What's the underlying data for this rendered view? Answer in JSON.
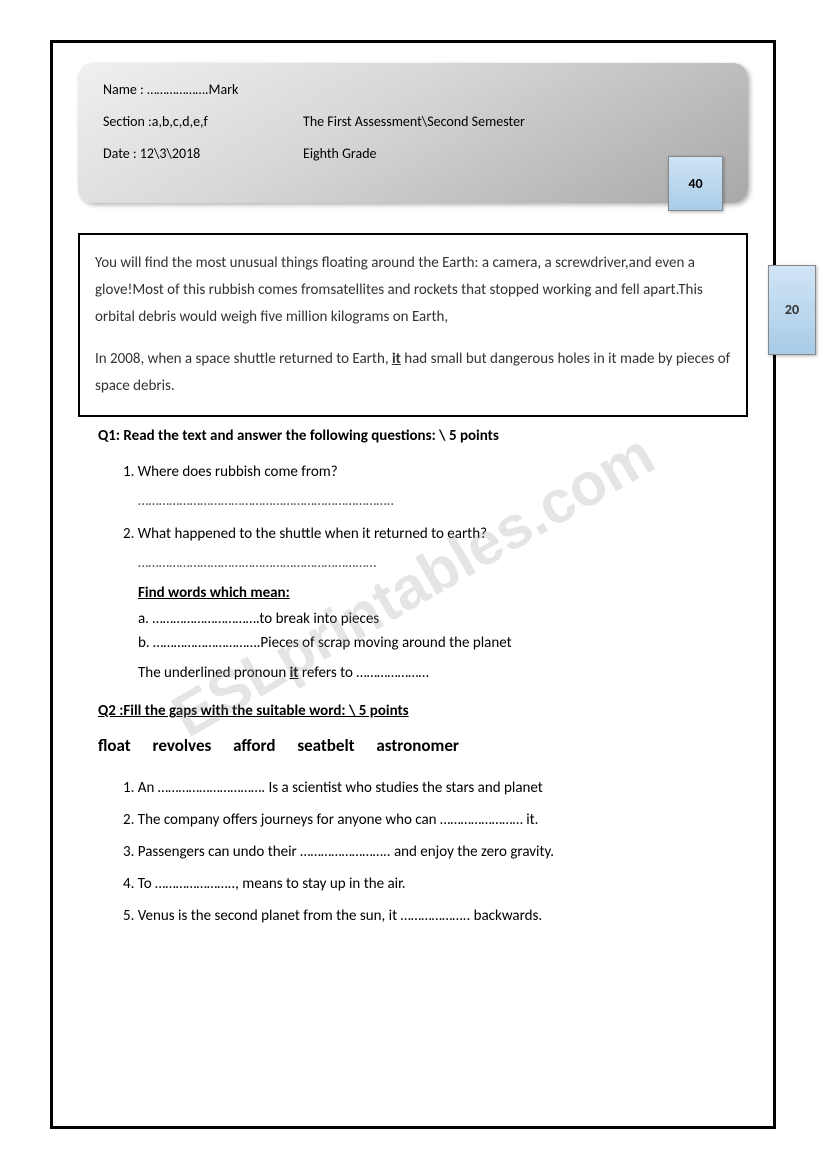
{
  "header": {
    "name_label": "Name : ……………….Mark",
    "section_label": "Section :a,b,c,d,e,f",
    "assessment_title": "The First Assessment\\Second Semester",
    "date_label": "Date : 12\\3\\2018",
    "grade_label": "Eighth Grade",
    "total_score": "40"
  },
  "passage": {
    "paragraph1": "You will find the most unusual things floating around the Earth: a camera, a screwdriver,and even a glove!Most of this rubbish comes fromsatellites and rockets that stopped working and fell apart.This orbital debris would weigh five million kilograms on Earth,",
    "paragraph2_before": "In 2008, when a space shuttle returned to Earth, ",
    "paragraph2_underlined": "it",
    "paragraph2_after": " had small but dangerous holes in it made by pieces of space debris.",
    "section_score": "20"
  },
  "q1": {
    "title": "Q1: Read the text and answer the following questions:        \\ 5 points",
    "item1": "Where does rubbish come from?",
    "line1": "………………………………………………………………..",
    "item2": "What happened to the shuttle when it returned to earth?",
    "line2": "……………………………………………………………",
    "find_words_heading": "Find words which mean:",
    "sub_a": "a.   ………………………….to break into pieces",
    "sub_b": "b.   ………………………….Pieces of scrap moving around the planet",
    "pronoun_line_before": "The underlined pronoun ",
    "pronoun_underlined": "it",
    "pronoun_line_after": " refers to …………………"
  },
  "q2": {
    "title": "Q2 :Fill the gaps with the suitable word:        \\ 5 points",
    "word_bank": "float    revolves       afford       seatbelt    astronomer",
    "item1": "An …………………………. Is a scientist who studies the stars and planet",
    "item2": "The company offers journeys for anyone who can …………………… it.",
    "item3": "Passengers can undo their …………………….. and enjoy the zero gravity.",
    "item4": "To ………………….., means to stay up in the air.",
    "item5": "Venus is the second planet from the sun, it ……………….. backwards."
  },
  "watermark": {
    "text": "ESLprintables.com"
  }
}
